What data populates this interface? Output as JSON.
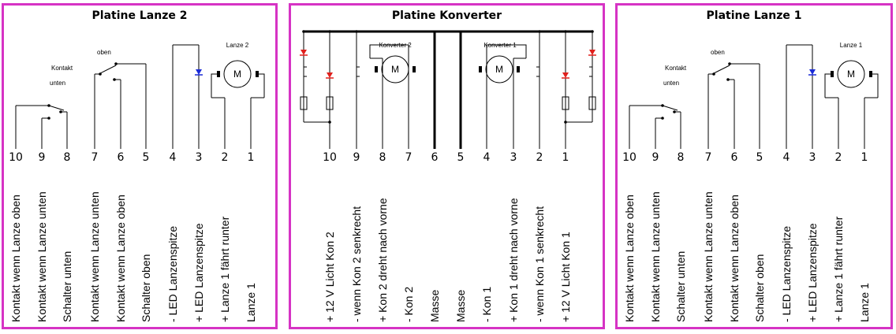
{
  "boards": {
    "lanze2": {
      "title": "Platine Lanze 2",
      "motor_label": "Lanze 2",
      "motor_symbol": "M",
      "switch1_top": "Kontakt",
      "switch1_bottom": "unten",
      "switch2_label": "oben",
      "pins": [
        "10",
        "9",
        "8",
        "7",
        "6",
        "5",
        "4",
        "3",
        "2",
        "1"
      ],
      "labels": [
        "Kontakt wenn Lanze oben",
        "Kontakt wenn Lanze unten",
        "Schalter unten",
        "Kontakt wenn Lanze unten",
        "Kontakt wenn Lanze oben",
        "Schalter oben",
        "-  LED Lanzenspitze",
        "+ LED Lanzenspitze",
        "+ Lanze 1 fährt runter",
        "Lanze 1"
      ]
    },
    "konverter": {
      "title": "Platine Konverter",
      "motor2_label": "Konverter 2",
      "motor1_label": "Konverter 1",
      "motor_symbol": "M",
      "pins": [
        "10",
        "9",
        "8",
        "7",
        "6",
        "5",
        "4",
        "3",
        "2",
        "1"
      ],
      "labels": [
        "+ 12 V Licht Kon 2",
        "-  wenn Kon 2 senkrecht",
        "+ Kon 2 dreht nach vorne",
        "-  Kon 2",
        "Masse",
        "Masse",
        "-  Kon 1",
        "+ Kon 1 dreht nach vorne",
        "-  wenn Kon 1 senkrecht",
        "+ 12 V Licht Kon 1"
      ]
    },
    "lanze1": {
      "title": "Platine Lanze 1",
      "motor_label": "Lanze 1",
      "motor_symbol": "M",
      "switch1_top": "Kontakt",
      "switch1_bottom": "unten",
      "switch2_label": "oben",
      "pins": [
        "10",
        "9",
        "8",
        "7",
        "6",
        "5",
        "4",
        "3",
        "2",
        "1"
      ],
      "labels": [
        "Kontakt wenn Lanze oben",
        "Kontakt wenn Lanze unten",
        "Schalter unten",
        "Kontakt wenn Lanze unten",
        "Kontakt wenn Lanze oben",
        "Schalter oben",
        "-  LED Lanzenspitze",
        "+ LED Lanzenspitze",
        "+ Lanze 1 fährt runter",
        "Lanze 1"
      ]
    }
  },
  "colors": {
    "border": "#d633c4",
    "led_lanze": "#1a2bd6",
    "led_konverter": "#e0201c",
    "line": "#000000"
  }
}
